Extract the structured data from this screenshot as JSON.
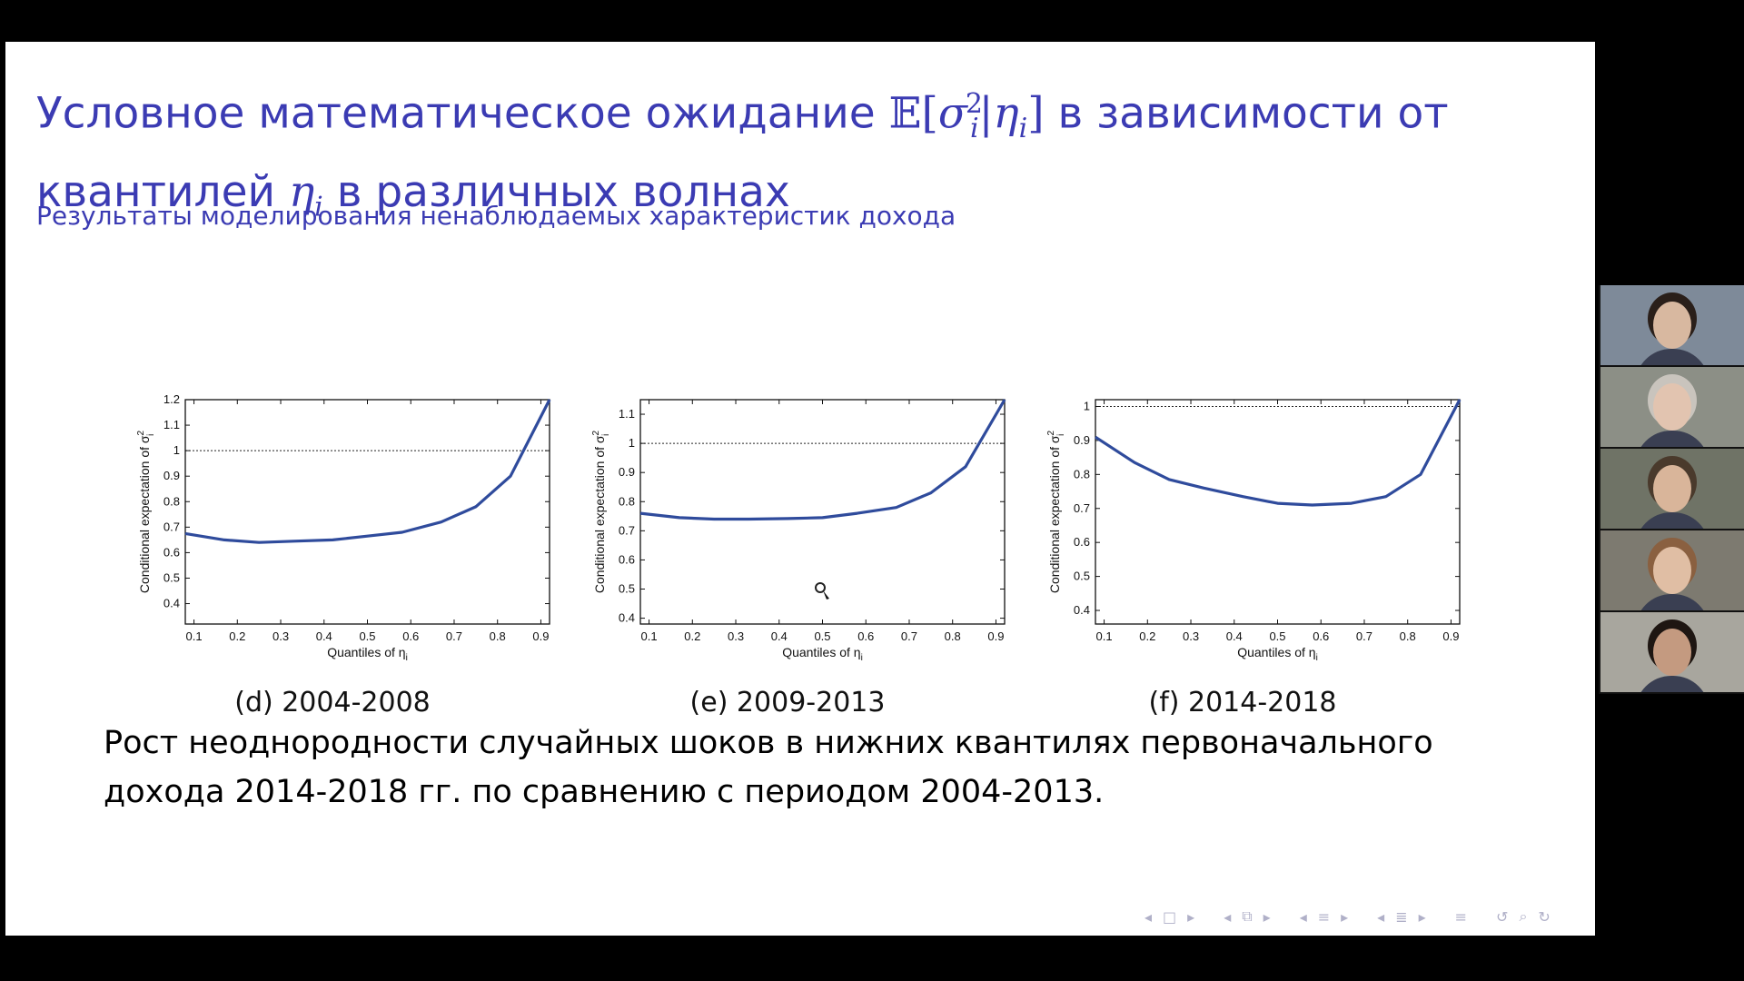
{
  "slide": {
    "title_line1_pre": "Условное математическое ожидание ",
    "title_math_E": "𝔼",
    "title_math_open": "[",
    "title_math_sigma": "σ",
    "title_math_sigma_sub": "i",
    "title_math_sigma_sup": "2",
    "title_math_bar": "|",
    "title_math_eta": "η",
    "title_math_eta_sub": "i",
    "title_math_close": "]",
    "title_line1_post": " в зависимости от",
    "title_line2_pre": "квантилей ",
    "title_line2_eta": "η",
    "title_line2_eta_sub": "i",
    "title_line2_post": " в различных волнах",
    "subtitle": "Результаты моделирования ненаблюдаемых характеристик дохода",
    "body_line1": "Рост неоднородности случайных шоков в нижних квантилях первоначального",
    "body_line2": "дохода 2014-2018 гг. по сравнению с периодом 2004-2013."
  },
  "chart_data": [
    {
      "type": "line",
      "caption": "(d) 2004-2008",
      "xlabel": "Quantiles of η",
      "xlabel_sub": "i",
      "ylabel": "Conditional expectation of σ",
      "ylabel_sup": "2",
      "ylabel_sub": "i",
      "xlim": [
        0.08,
        0.92
      ],
      "ylim": [
        0.32,
        1.2
      ],
      "xticks": [
        0.1,
        0.2,
        0.3,
        0.4,
        0.5,
        0.6,
        0.7,
        0.8,
        0.9
      ],
      "xtick_labels": [
        "0.1",
        "0.2",
        "0.3",
        "0.4",
        "0.5",
        "0.6",
        "0.7",
        "0.8",
        "0.9"
      ],
      "yticks": [
        0.4,
        0.5,
        0.6,
        0.7,
        0.8,
        0.9,
        1,
        1.1,
        1.2
      ],
      "ytick_labels": [
        "0.4",
        "0.5",
        "0.6",
        "0.7",
        "0.8",
        "0.9",
        "1",
        "1.1",
        "1.2"
      ],
      "reference_line": 1,
      "color": "#2f4b9c",
      "x": [
        0.08,
        0.17,
        0.25,
        0.33,
        0.42,
        0.5,
        0.58,
        0.67,
        0.75,
        0.83,
        0.92
      ],
      "y": [
        0.675,
        0.65,
        0.64,
        0.645,
        0.65,
        0.665,
        0.68,
        0.72,
        0.78,
        0.9,
        1.2
      ]
    },
    {
      "type": "line",
      "caption": "(e) 2009-2013",
      "xlabel": "Quantiles of η",
      "xlabel_sub": "i",
      "ylabel": "Conditional expectation of σ",
      "ylabel_sup": "2",
      "ylabel_sub": "i",
      "xlim": [
        0.08,
        0.92
      ],
      "ylim": [
        0.38,
        1.15
      ],
      "xticks": [
        0.1,
        0.2,
        0.3,
        0.4,
        0.5,
        0.6,
        0.7,
        0.8,
        0.9
      ],
      "xtick_labels": [
        "0.1",
        "0.2",
        "0.3",
        "0.4",
        "0.5",
        "0.6",
        "0.7",
        "0.8",
        "0.9"
      ],
      "yticks": [
        0.4,
        0.5,
        0.6,
        0.7,
        0.8,
        0.9,
        1,
        1.1
      ],
      "ytick_labels": [
        "0.4",
        "0.5",
        "0.6",
        "0.7",
        "0.8",
        "0.9",
        "1",
        "1.1"
      ],
      "reference_line": 1,
      "color": "#2f4b9c",
      "x": [
        0.08,
        0.17,
        0.25,
        0.33,
        0.42,
        0.5,
        0.58,
        0.67,
        0.75,
        0.83,
        0.92
      ],
      "y": [
        0.76,
        0.745,
        0.74,
        0.74,
        0.742,
        0.745,
        0.76,
        0.78,
        0.83,
        0.92,
        1.15
      ]
    },
    {
      "type": "line",
      "caption": "(f) 2014-2018",
      "xlabel": "Quantiles of η",
      "xlabel_sub": "i",
      "ylabel": "Conditional expectation of σ",
      "ylabel_sup": "2",
      "ylabel_sub": "i",
      "xlim": [
        0.08,
        0.92
      ],
      "ylim": [
        0.36,
        1.02
      ],
      "xticks": [
        0.1,
        0.2,
        0.3,
        0.4,
        0.5,
        0.6,
        0.7,
        0.8,
        0.9
      ],
      "xtick_labels": [
        "0.1",
        "0.2",
        "0.3",
        "0.4",
        "0.5",
        "0.6",
        "0.7",
        "0.8",
        "0.9"
      ],
      "yticks": [
        0.4,
        0.5,
        0.6,
        0.7,
        0.8,
        0.9,
        1
      ],
      "ytick_labels": [
        "0.4",
        "0.5",
        "0.6",
        "0.7",
        "0.8",
        "0.9",
        "1"
      ],
      "reference_line": 1,
      "color": "#2f4b9c",
      "x": [
        0.08,
        0.17,
        0.25,
        0.33,
        0.42,
        0.5,
        0.58,
        0.67,
        0.75,
        0.83,
        0.92
      ],
      "y": [
        0.91,
        0.835,
        0.785,
        0.76,
        0.735,
        0.715,
        0.71,
        0.715,
        0.735,
        0.8,
        1.02
      ]
    }
  ],
  "nav": {
    "icons": [
      "nav-prev-frame-icon",
      "nav-frame-icon",
      "nav-next-frame-icon",
      "nav-prev-subsection-icon",
      "nav-subsection-icon",
      "nav-next-subsection-icon",
      "nav-prev-section-icon",
      "nav-section-icon",
      "nav-next-section-icon",
      "nav-prev-slide-icon",
      "nav-slide-icon",
      "nav-next-slide-icon",
      "nav-toc-icon",
      "nav-undo-icon",
      "nav-search-icon",
      "nav-redo-icon"
    ],
    "glyphs": [
      "◂",
      "□",
      "▸",
      "◂",
      "⧉",
      "▸",
      "◂",
      "≡",
      "▸",
      "◂",
      "≣",
      "▸",
      "≡",
      "↺",
      "⌕",
      "↻"
    ]
  },
  "participants": [
    {
      "id": "participant-1",
      "bg": "#7e8a99",
      "skin": "#d8b8a0",
      "hair": "#2a1f1a"
    },
    {
      "id": "participant-2",
      "bg": "#8c8f86",
      "skin": "#e2c4b0",
      "hair": "#c9c4bd"
    },
    {
      "id": "participant-3",
      "bg": "#6f7366",
      "skin": "#d9b59a",
      "hair": "#4a3a2c"
    },
    {
      "id": "participant-4",
      "bg": "#7d7a70",
      "skin": "#e0bea4",
      "hair": "#8a6040"
    },
    {
      "id": "participant-5",
      "bg": "#a8a69e",
      "skin": "#c49a80",
      "hair": "#1e1612"
    }
  ]
}
